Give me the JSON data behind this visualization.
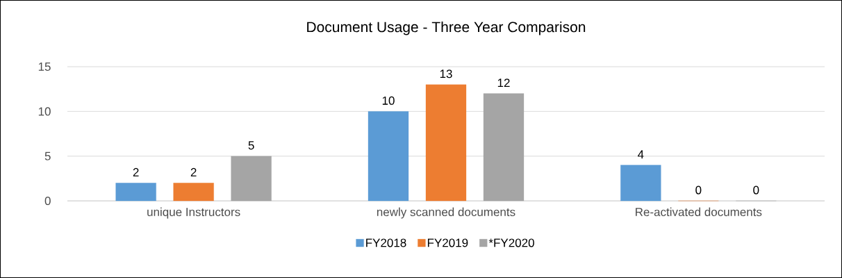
{
  "chart_data": {
    "type": "bar",
    "title": "Document Usage - Three Year Comparison",
    "categories": [
      "unique Instructors",
      "newly scanned documents",
      "Re-activated documents"
    ],
    "series": [
      {
        "name": "FY2018",
        "color": "#5b9bd5",
        "values": [
          2,
          10,
          4
        ]
      },
      {
        "name": "FY2019",
        "color": "#ed7d31",
        "values": [
          2,
          13,
          0
        ]
      },
      {
        "name": "*FY2020",
        "color": "#a5a5a5",
        "values": [
          5,
          12,
          0
        ]
      }
    ],
    "ylim": [
      0,
      15
    ],
    "yticks": [
      0,
      5,
      10,
      15
    ],
    "grid": "y",
    "legend": "bottom",
    "data_labels": true
  }
}
